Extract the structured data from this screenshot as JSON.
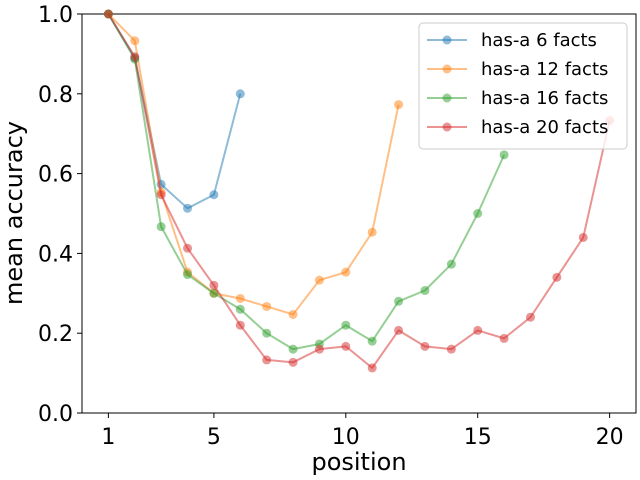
{
  "chart_data": {
    "type": "line",
    "xlabel": "position",
    "ylabel": "mean accuracy",
    "xlim": [
      0.0,
      21.0
    ],
    "ylim": [
      0.0,
      1.0
    ],
    "xticks": [
      1,
      5,
      10,
      15,
      20
    ],
    "yticks": [
      0.0,
      0.2,
      0.4,
      0.6,
      0.8,
      1.0
    ],
    "grid": false,
    "legend_position": "top-right",
    "series": [
      {
        "name": "has-a 6 facts",
        "color": "#1f77b4",
        "x": [
          1,
          2,
          3,
          4,
          5,
          6
        ],
        "y": [
          1.0,
          0.89,
          0.573,
          0.513,
          0.547,
          0.8
        ]
      },
      {
        "name": "has-a 12 facts",
        "color": "#ff7f0e",
        "x": [
          1,
          2,
          3,
          4,
          5,
          6,
          7,
          8,
          9,
          10,
          11,
          12
        ],
        "y": [
          1.0,
          0.933,
          0.553,
          0.353,
          0.3,
          0.287,
          0.267,
          0.247,
          0.333,
          0.353,
          0.453,
          0.773
        ]
      },
      {
        "name": "has-a 16 facts",
        "color": "#2ca02c",
        "x": [
          1,
          2,
          3,
          4,
          5,
          6,
          7,
          8,
          9,
          10,
          11,
          12,
          13,
          14,
          15,
          16
        ],
        "y": [
          1.0,
          0.887,
          0.467,
          0.347,
          0.3,
          0.26,
          0.2,
          0.16,
          0.173,
          0.22,
          0.18,
          0.28,
          0.307,
          0.373,
          0.5,
          0.647
        ]
      },
      {
        "name": "has-a 20 facts",
        "color": "#d62728",
        "x": [
          1,
          2,
          3,
          4,
          5,
          6,
          7,
          8,
          9,
          10,
          11,
          12,
          13,
          14,
          15,
          16,
          17,
          18,
          19,
          20
        ],
        "y": [
          1.0,
          0.893,
          0.547,
          0.413,
          0.32,
          0.22,
          0.133,
          0.127,
          0.16,
          0.167,
          0.113,
          0.207,
          0.167,
          0.16,
          0.207,
          0.187,
          0.24,
          0.34,
          0.44,
          0.733
        ]
      }
    ]
  }
}
